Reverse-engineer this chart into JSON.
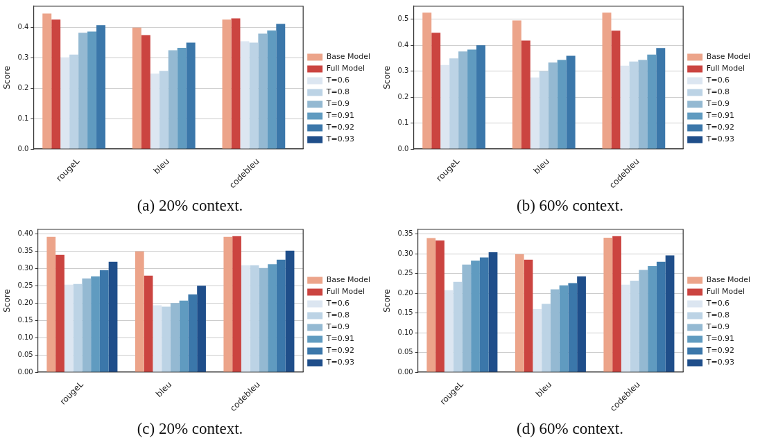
{
  "chart_data": [
    {
      "type": "bar",
      "categories": [
        "rougeL",
        "bleu",
        "codebleu"
      ],
      "ylabel": "Score",
      "ylim": [
        0,
        0.47
      ],
      "yticks": [
        {
          "value": 0,
          "label": "0.0"
        },
        {
          "value": 0.1,
          "label": "0.1"
        },
        {
          "value": 0.2,
          "label": "0.2"
        },
        {
          "value": 0.3,
          "label": "0.3"
        },
        {
          "value": 0.4,
          "label": "0.4"
        }
      ],
      "grid": "y",
      "legend": "right",
      "annotations": [
        "(a) 20% context."
      ],
      "series": [
        {
          "name": "Base Model",
          "color": "#eca48a",
          "values": [
            0.446,
            0.4,
            0.426
          ]
        },
        {
          "name": "Full Model",
          "color": "#cb4440",
          "values": [
            0.426,
            0.375,
            0.43
          ]
        },
        {
          "name": "T=0.6",
          "color": "#dce6f1",
          "values": [
            0.302,
            0.248,
            0.355
          ]
        },
        {
          "name": "T=0.8",
          "color": "#bcd3e5",
          "values": [
            0.311,
            0.257,
            0.35
          ]
        },
        {
          "name": "T=0.9",
          "color": "#94b9d2",
          "values": [
            0.383,
            0.325,
            0.38
          ]
        },
        {
          "name": "T=0.91",
          "color": "#609bc0",
          "values": [
            0.387,
            0.333,
            0.39
          ]
        },
        {
          "name": "T=0.92",
          "color": "#3b77aa",
          "values": [
            0.408,
            0.35,
            0.412
          ]
        },
        {
          "name": "T=0.93",
          "color": "#1f4e8a",
          "values": [
            null,
            null,
            null
          ]
        }
      ]
    },
    {
      "type": "bar",
      "categories": [
        "rougeL",
        "bleu",
        "codebleu"
      ],
      "ylabel": "Score",
      "ylim": [
        0,
        0.55
      ],
      "yticks": [
        {
          "value": 0,
          "label": "0.0"
        },
        {
          "value": 0.1,
          "label": "0.1"
        },
        {
          "value": 0.2,
          "label": "0.2"
        },
        {
          "value": 0.3,
          "label": "0.3"
        },
        {
          "value": 0.4,
          "label": "0.4"
        },
        {
          "value": 0.5,
          "label": "0.5"
        }
      ],
      "grid": "y",
      "legend": "right",
      "annotations": [
        "(b) 60% context."
      ],
      "series": [
        {
          "name": "Base Model",
          "color": "#eca48a",
          "values": [
            0.525,
            0.495,
            0.525
          ]
        },
        {
          "name": "Full Model",
          "color": "#cb4440",
          "values": [
            0.448,
            0.418,
            0.456
          ]
        },
        {
          "name": "T=0.6",
          "color": "#dce6f1",
          "values": [
            0.324,
            0.276,
            0.321
          ]
        },
        {
          "name": "T=0.8",
          "color": "#bcd3e5",
          "values": [
            0.349,
            0.3,
            0.337
          ]
        },
        {
          "name": "T=0.9",
          "color": "#94b9d2",
          "values": [
            0.376,
            0.333,
            0.343
          ]
        },
        {
          "name": "T=0.91",
          "color": "#609bc0",
          "values": [
            0.383,
            0.343,
            0.364
          ]
        },
        {
          "name": "T=0.92",
          "color": "#3b77aa",
          "values": [
            0.4,
            0.359,
            0.389
          ]
        },
        {
          "name": "T=0.93",
          "color": "#1f4e8a",
          "values": [
            null,
            null,
            null
          ]
        }
      ]
    },
    {
      "type": "bar",
      "categories": [
        "rougeL",
        "bleu",
        "codebleu"
      ],
      "ylabel": "Score",
      "ylim": [
        0,
        0.4125
      ],
      "yticks": [
        {
          "value": 0,
          "label": "0.00"
        },
        {
          "value": 0.05,
          "label": "0.05"
        },
        {
          "value": 0.1,
          "label": "0.10"
        },
        {
          "value": 0.15,
          "label": "0.15"
        },
        {
          "value": 0.2,
          "label": "0.20"
        },
        {
          "value": 0.25,
          "label": "0.25"
        },
        {
          "value": 0.3,
          "label": "0.30"
        },
        {
          "value": 0.35,
          "label": "0.35"
        },
        {
          "value": 0.4,
          "label": "0.40"
        }
      ],
      "grid": "y",
      "legend": "right",
      "annotations": [
        "(c) 20% context."
      ],
      "series": [
        {
          "name": "Base Model",
          "color": "#eca48a",
          "values": [
            0.391,
            0.349,
            0.391
          ]
        },
        {
          "name": "Full Model",
          "color": "#cb4440",
          "values": [
            0.339,
            0.279,
            0.393
          ]
        },
        {
          "name": "T=0.6",
          "color": "#dce6f1",
          "values": [
            0.253,
            0.193,
            0.309
          ]
        },
        {
          "name": "T=0.8",
          "color": "#bcd3e5",
          "values": [
            0.255,
            0.189,
            0.309
          ]
        },
        {
          "name": "T=0.9",
          "color": "#94b9d2",
          "values": [
            0.271,
            0.2,
            0.301
          ]
        },
        {
          "name": "T=0.91",
          "color": "#609bc0",
          "values": [
            0.277,
            0.207,
            0.312
          ]
        },
        {
          "name": "T=0.92",
          "color": "#3b77aa",
          "values": [
            0.295,
            0.225,
            0.325
          ]
        },
        {
          "name": "T=0.93",
          "color": "#1f4e8a",
          "values": [
            0.319,
            0.25,
            0.351
          ]
        }
      ]
    },
    {
      "type": "bar",
      "categories": [
        "rougeL",
        "bleu",
        "codebleu"
      ],
      "ylabel": "Score",
      "ylim": [
        0,
        0.362
      ],
      "yticks": [
        {
          "value": 0,
          "label": "0.00"
        },
        {
          "value": 0.05,
          "label": "0.05"
        },
        {
          "value": 0.1,
          "label": "0.10"
        },
        {
          "value": 0.15,
          "label": "0.15"
        },
        {
          "value": 0.2,
          "label": "0.20"
        },
        {
          "value": 0.25,
          "label": "0.25"
        },
        {
          "value": 0.3,
          "label": "0.30"
        },
        {
          "value": 0.35,
          "label": "0.35"
        }
      ],
      "grid": "y",
      "legend": "right",
      "annotations": [
        "(d) 60% context."
      ],
      "series": [
        {
          "name": "Base Model",
          "color": "#eca48a",
          "values": [
            0.34,
            0.299,
            0.341
          ]
        },
        {
          "name": "Full Model",
          "color": "#cb4440",
          "values": [
            0.334,
            0.285,
            0.345
          ]
        },
        {
          "name": "T=0.6",
          "color": "#dce6f1",
          "values": [
            0.208,
            0.16,
            0.222
          ]
        },
        {
          "name": "T=0.8",
          "color": "#bcd3e5",
          "values": [
            0.229,
            0.173,
            0.232
          ]
        },
        {
          "name": "T=0.9",
          "color": "#94b9d2",
          "values": [
            0.273,
            0.21,
            0.259
          ]
        },
        {
          "name": "T=0.91",
          "color": "#609bc0",
          "values": [
            0.283,
            0.22,
            0.269
          ]
        },
        {
          "name": "T=0.92",
          "color": "#3b77aa",
          "values": [
            0.291,
            0.226,
            0.28
          ]
        },
        {
          "name": "T=0.93",
          "color": "#1f4e8a",
          "values": [
            0.304,
            0.243,
            0.296
          ]
        }
      ]
    }
  ]
}
